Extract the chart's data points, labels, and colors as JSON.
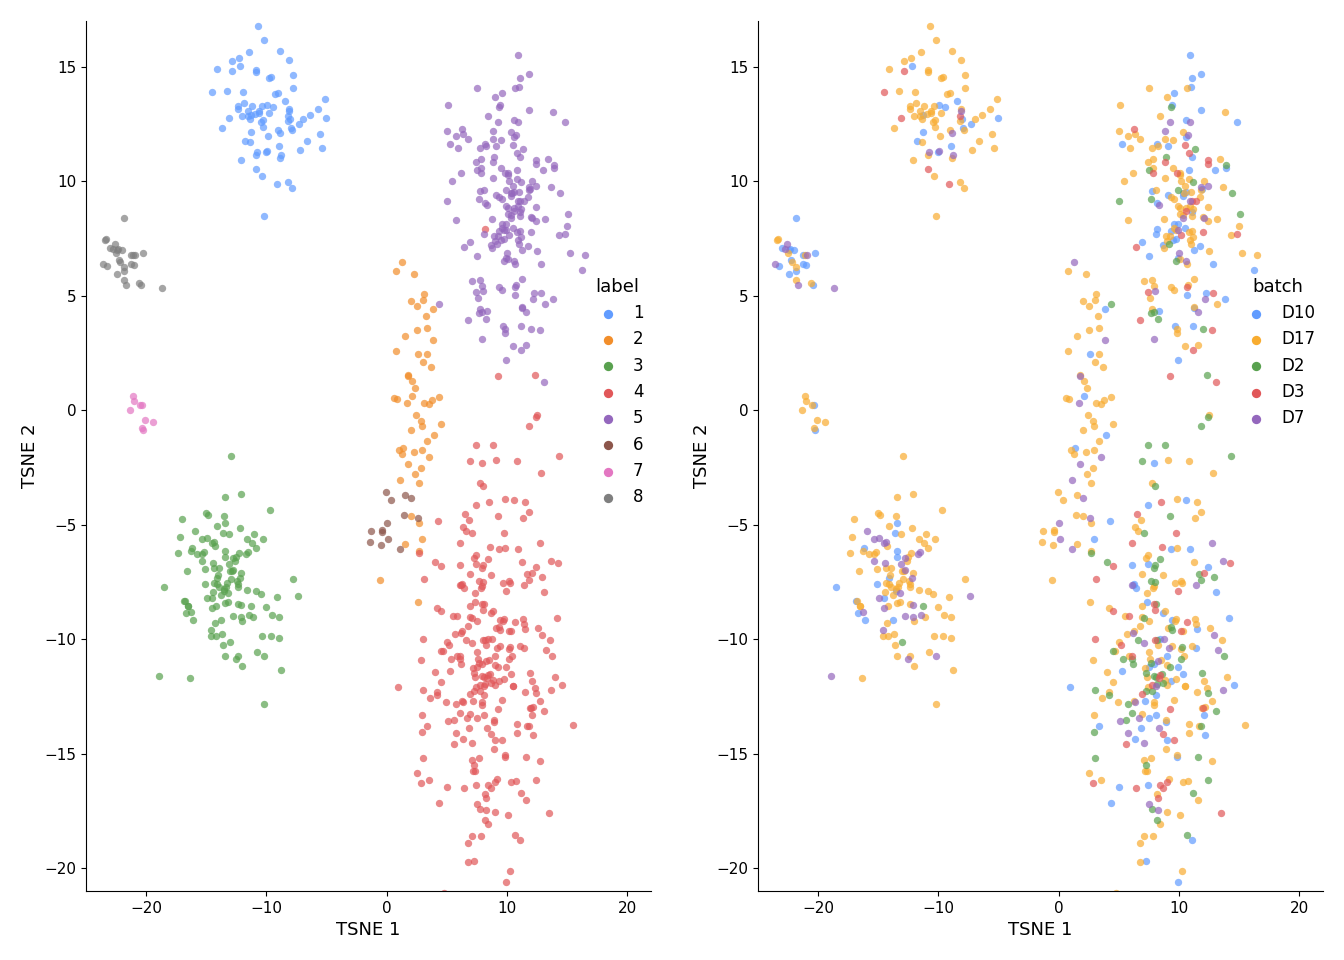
{
  "cluster_colors": {
    "1": "#619CFF",
    "2": "#F28E2B",
    "3": "#59A14F",
    "4": "#E15759",
    "5": "#9467BD",
    "6": "#8C564B",
    "7": "#E377C2",
    "8": "#7F7F7F"
  },
  "batch_colors": {
    "D10": "#619CFF",
    "D17": "#F8AC30",
    "D2": "#59A14F",
    "D3": "#E15759",
    "D7": "#9467BD"
  },
  "xlim": [
    -25,
    22
  ],
  "ylim": [
    -21,
    17
  ],
  "xlabel": "TSNE 1",
  "ylabel": "TSNE 2",
  "left_title": "label",
  "right_title": "batch",
  "point_size": 28,
  "alpha": 0.7,
  "bg_color": "#FFFFFF",
  "seed": 42
}
